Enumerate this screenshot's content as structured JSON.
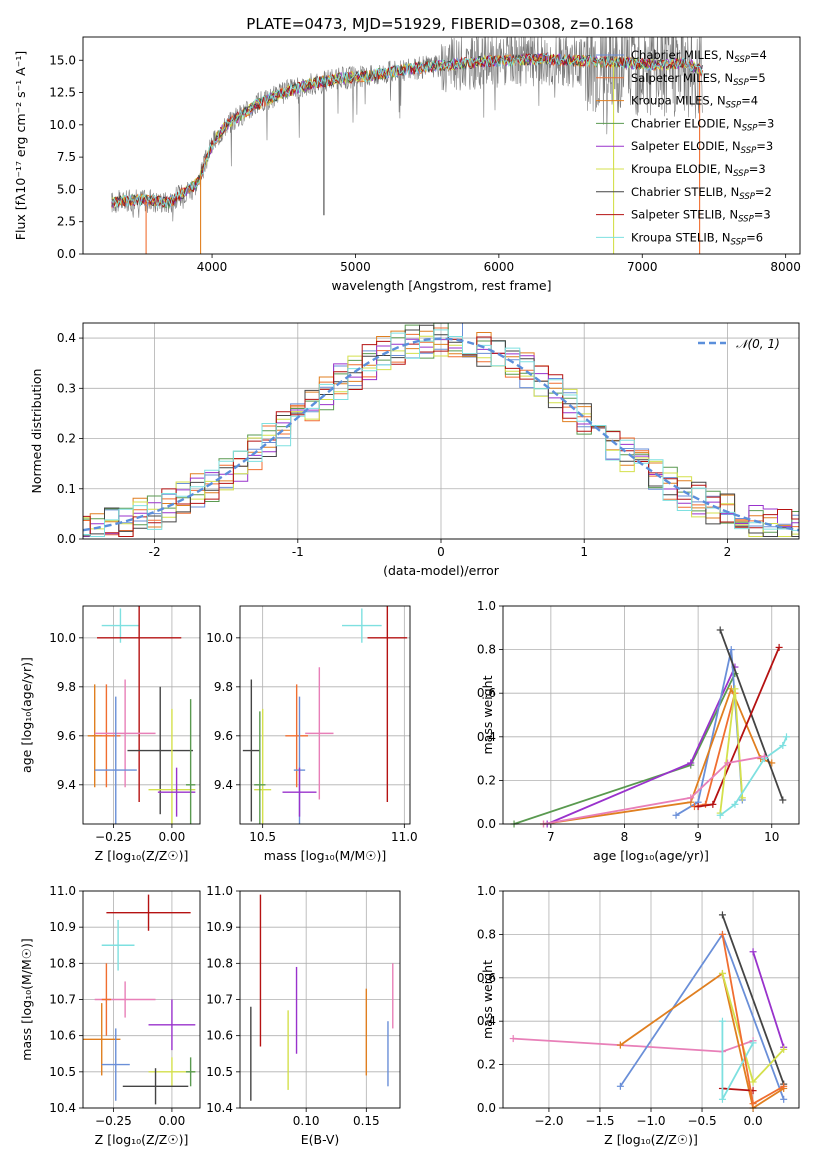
{
  "figure_title": "PLATE=0473, MJD=51929, FIBERID=0308, z=0.168",
  "colors": {
    "chabrier_miles": "#6a8fd8",
    "salpeter_miles": "#f06e30",
    "kroupa_miles": "#e07f20",
    "chabrier_elodie": "#5a9a50",
    "salpeter_elodie": "#9932cc",
    "kroupa_elodie": "#d4e04c",
    "chabrier_stelib": "#444444",
    "salpeter_stelib": "#b51212",
    "kroupa_stelib": "#7ee0e0",
    "pink": "#e87fb8",
    "normal_curve": "#5b8fdb",
    "grid": "#b0b0b0"
  },
  "chart_data": [
    {
      "id": "spectrum",
      "type": "line",
      "title": "PLATE=0473, MJD=51929, FIBERID=0308, z=0.168",
      "xlabel": "wavelength [Angstrom, rest frame]",
      "ylabel": "Flux [fλ10⁻¹⁷ erg cm⁻² s⁻¹ A⁻¹]",
      "xlim": [
        3100,
        8100
      ],
      "ylim": [
        0,
        16.8
      ],
      "xticks": [
        4000,
        5000,
        6000,
        7000,
        8000
      ],
      "yticks": [
        0.0,
        2.5,
        5.0,
        7.5,
        10.0,
        12.5,
        15.0
      ],
      "grid": false,
      "legend_position": "right",
      "legend": [
        {
          "label": "Chabrier MILES, N",
          "sub": "SSP",
          "tail": "=4"
        },
        {
          "label": "Salpeter MILES, N",
          "sub": "SSP",
          "tail": "=5"
        },
        {
          "label": "Kroupa MILES, N",
          "sub": "SSP",
          "tail": "=4"
        },
        {
          "label": "Chabrier ELODIE, N",
          "sub": "SSP",
          "tail": "=3"
        },
        {
          "label": "Salpeter ELODIE, N",
          "sub": "SSP",
          "tail": "=3"
        },
        {
          "label": "Kroupa ELODIE, N",
          "sub": "SSP",
          "tail": "=3"
        },
        {
          "label": "Chabrier STELIB, N",
          "sub": "SSP",
          "tail": "=2"
        },
        {
          "label": "Salpeter STELIB, N",
          "sub": "SSP",
          "tail": "=3"
        },
        {
          "label": "Kroupa STELIB, N",
          "sub": "SSP",
          "tail": "=6"
        }
      ],
      "continuum": {
        "x": [
          3300,
          3500,
          3700,
          3900,
          4000,
          4100,
          4300,
          4500,
          4700,
          4900,
          5100,
          5300,
          5500,
          5700,
          5900,
          6100,
          6300,
          6500,
          6700,
          6900,
          7100,
          7300,
          7420
        ],
        "y": [
          4.0,
          4.2,
          4.0,
          5.5,
          8.5,
          10.0,
          11.5,
          12.5,
          13.2,
          13.6,
          13.8,
          14.2,
          14.5,
          14.7,
          14.9,
          15.0,
          15.1,
          15.0,
          14.9,
          14.8,
          14.6,
          14.8,
          14.2
        ]
      },
      "spikes": [
        {
          "x": 3540,
          "y": 0.0,
          "series": "salpeter_miles"
        },
        {
          "x": 3920,
          "y": 0.0,
          "series": "kroupa_miles"
        },
        {
          "x": 4780,
          "y": 3.0,
          "series": "chabrier_stelib"
        },
        {
          "x": 6800,
          "y": 0.0,
          "series": "kroupa_elodie"
        },
        {
          "x": 7400,
          "y": 0.0,
          "series": "salpeter_miles"
        }
      ]
    },
    {
      "id": "residuals",
      "type": "histogram",
      "xlabel": "(data-model)/error",
      "ylabel": "Normed distribution",
      "xlim": [
        -2.5,
        2.5
      ],
      "ylim": [
        0,
        0.43
      ],
      "xticks": [
        -2,
        -1,
        0,
        1,
        2
      ],
      "yticks": [
        0.0,
        0.1,
        0.2,
        0.3,
        0.4
      ],
      "grid": true,
      "legend_position": "top-right",
      "legend_label": "𝒩(0, 1)",
      "normal": {
        "mu": 0,
        "sigma": 1
      },
      "bin_width": 0.1,
      "series_count": 9
    },
    {
      "id": "age_vs_Z",
      "type": "scatter",
      "xlabel": "Z [log₁₀(Z/Z☉)]",
      "ylabel": "age  [log₁₀(age/yr)]",
      "xlim": [
        -0.38,
        0.12
      ],
      "ylim": [
        9.24,
        10.13
      ],
      "xticks": [
        -0.25,
        0.0
      ],
      "xtick_labels": [
        "−0.25",
        "0.00"
      ],
      "yticks": [
        9.4,
        9.6,
        9.8,
        10.0
      ],
      "grid": true,
      "points": [
        {
          "series": "kroupa_stelib",
          "x": -0.22,
          "y": 10.05,
          "xerr": 0.08,
          "yerr": 0.07
        },
        {
          "series": "salpeter_stelib",
          "x": -0.14,
          "y": 10.0,
          "xerr": 0.18,
          "yerr": 0.67
        },
        {
          "series": "salpeter_miles",
          "x": -0.28,
          "y": 9.6,
          "xerr": 0.06,
          "yerr": 0.21
        },
        {
          "series": "kroupa_miles",
          "x": -0.33,
          "y": 9.6,
          "xerr": 0.03,
          "yerr": 0.21
        },
        {
          "series": "pink",
          "x": -0.2,
          "y": 9.61,
          "xerr": 0.13,
          "yerr": 0.22
        },
        {
          "series": "chabrier_miles",
          "x": -0.24,
          "y": 9.46,
          "xerr": 0.09,
          "yerr": 0.3
        },
        {
          "series": "chabrier_stelib",
          "x": -0.05,
          "y": 9.54,
          "xerr": 0.14,
          "yerr": 0.26
        },
        {
          "series": "kroupa_elodie",
          "x": 0.0,
          "y": 9.38,
          "xerr": 0.1,
          "yerr": 0.33
        },
        {
          "series": "salpeter_elodie",
          "x": 0.02,
          "y": 9.37,
          "xerr": 0.08,
          "yerr": 0.1
        },
        {
          "series": "chabrier_elodie",
          "x": 0.08,
          "y": 9.4,
          "xerr": 0.02,
          "yerr": 0.35
        }
      ]
    },
    {
      "id": "age_vs_mass",
      "type": "scatter",
      "xlabel": "mass [log₁₀(M/M☉)]",
      "ylabel": "",
      "xlim": [
        10.42,
        11.02
      ],
      "ylim": [
        9.24,
        10.13
      ],
      "xticks": [
        10.5,
        11.0
      ],
      "xtick_labels": [
        "10.5",
        "11.0"
      ],
      "yticks": [
        9.4,
        9.6,
        9.8,
        10.0
      ],
      "grid": true,
      "points": [
        {
          "series": "kroupa_stelib",
          "x": 10.85,
          "y": 10.05,
          "xerr": 0.07,
          "yerr": 0.07
        },
        {
          "series": "salpeter_stelib",
          "x": 10.94,
          "y": 10.0,
          "xerr": 0.07,
          "yerr": 0.67
        },
        {
          "series": "salpeter_miles",
          "x": 10.62,
          "y": 9.6,
          "xerr": 0.04,
          "yerr": 0.21
        },
        {
          "series": "pink",
          "x": 10.7,
          "y": 9.61,
          "xerr": 0.05,
          "yerr": 0.27
        },
        {
          "series": "chabrier_miles",
          "x": 10.63,
          "y": 9.46,
          "xerr": 0.02,
          "yerr": 0.3
        },
        {
          "series": "chabrier_stelib",
          "x": 10.46,
          "y": 9.54,
          "xerr": 0.03,
          "yerr": 0.29
        },
        {
          "series": "kroupa_elodie",
          "x": 10.5,
          "y": 9.38,
          "xerr": 0.03,
          "yerr": 0.33
        },
        {
          "series": "salpeter_elodie",
          "x": 10.63,
          "y": 9.37,
          "xerr": 0.06,
          "yerr": 0.1
        },
        {
          "series": "chabrier_elodie",
          "x": 10.49,
          "y": 9.4,
          "xerr": 0.02,
          "yerr": 0.3
        }
      ]
    },
    {
      "id": "mass_weight_vs_age",
      "type": "line",
      "xlabel": "age  [log₁₀(age/yr)]",
      "ylabel": "mass weight",
      "xlim": [
        6.35,
        10.37
      ],
      "ylim": [
        0,
        1.0
      ],
      "xticks": [
        7,
        8,
        9,
        10
      ],
      "yticks": [
        0.0,
        0.2,
        0.4,
        0.6,
        0.8,
        1.0
      ],
      "grid": true,
      "series": [
        {
          "series": "chabrier_elodie",
          "x": [
            6.5,
            8.9,
            9.5
          ],
          "y": [
            0.0,
            0.27,
            0.69
          ]
        },
        {
          "series": "salpeter_elodie",
          "x": [
            6.95,
            8.9,
            9.5
          ],
          "y": [
            0.0,
            0.28,
            0.72
          ]
        },
        {
          "series": "chabrier_miles",
          "x": [
            8.7,
            9.0,
            9.45,
            9.6
          ],
          "y": [
            0.04,
            0.1,
            0.8,
            0.11
          ]
        },
        {
          "series": "kroupa_miles",
          "x": [
            6.9,
            8.9,
            9.45,
            9.85,
            10.0
          ],
          "y": [
            0.0,
            0.1,
            0.62,
            0.3,
            0.28
          ]
        },
        {
          "series": "salpeter_miles",
          "x": [
            8.95,
            9.1,
            9.5
          ],
          "y": [
            0.08,
            0.09,
            0.6
          ]
        },
        {
          "series": "chabrier_stelib",
          "x": [
            9.3,
            10.15
          ],
          "y": [
            0.89,
            0.11
          ]
        },
        {
          "series": "salpeter_stelib",
          "x": [
            9.0,
            9.2,
            10.1
          ],
          "y": [
            0.08,
            0.09,
            0.81
          ]
        },
        {
          "series": "kroupa_elodie",
          "x": [
            9.3,
            9.5,
            9.6
          ],
          "y": [
            0.05,
            0.62,
            0.12
          ]
        },
        {
          "series": "kroupa_stelib",
          "x": [
            9.3,
            9.5,
            9.9,
            10.15,
            10.2
          ],
          "y": [
            0.04,
            0.09,
            0.3,
            0.36,
            0.4
          ]
        },
        {
          "series": "pink",
          "x": [
            6.9,
            8.9,
            9.4,
            9.9
          ],
          "y": [
            0.0,
            0.12,
            0.28,
            0.31
          ]
        }
      ]
    },
    {
      "id": "mass_vs_Z",
      "type": "scatter",
      "xlabel": "Z [log₁₀(Z/Z☉)]",
      "ylabel": "mass [log₁₀(M/M☉)]",
      "xlim": [
        -0.38,
        0.12
      ],
      "ylim": [
        10.4,
        11.0
      ],
      "xticks": [
        -0.25,
        0.0
      ],
      "xtick_labels": [
        "−0.25",
        "0.00"
      ],
      "yticks": [
        10.4,
        10.5,
        10.6,
        10.7,
        10.8,
        10.9,
        11.0
      ],
      "grid": true,
      "points": [
        {
          "series": "salpeter_stelib",
          "x": -0.1,
          "y": 10.94,
          "xerr": 0.18,
          "yerr": 0.05
        },
        {
          "series": "kroupa_stelib",
          "x": -0.23,
          "y": 10.85,
          "xerr": 0.07,
          "yerr": 0.07
        },
        {
          "series": "pink",
          "x": -0.2,
          "y": 10.7,
          "xerr": 0.13,
          "yerr": 0.05
        },
        {
          "series": "salpeter_miles",
          "x": -0.28,
          "y": 10.7,
          "xerr": 0.02,
          "yerr": 0.1
        },
        {
          "series": "salpeter_elodie",
          "x": 0.0,
          "y": 10.63,
          "xerr": 0.1,
          "yerr": 0.07
        },
        {
          "series": "kroupa_miles",
          "x": -0.3,
          "y": 10.59,
          "xerr": 0.08,
          "yerr": 0.1
        },
        {
          "series": "chabrier_miles",
          "x": -0.24,
          "y": 10.52,
          "xerr": 0.06,
          "yerr": 0.1
        },
        {
          "series": "kroupa_elodie",
          "x": 0.0,
          "y": 10.5,
          "xerr": 0.1,
          "yerr": 0.04
        },
        {
          "series": "chabrier_elodie",
          "x": 0.08,
          "y": 10.5,
          "xerr": 0.02,
          "yerr": 0.04
        },
        {
          "series": "chabrier_stelib",
          "x": -0.07,
          "y": 10.46,
          "xerr": 0.14,
          "yerr": 0.05
        }
      ]
    },
    {
      "id": "mass_vs_ebv",
      "type": "scatter",
      "xlabel": "E(B-V)",
      "ylabel": "",
      "xlim": [
        0.045,
        0.178
      ],
      "ylim": [
        10.4,
        11.0
      ],
      "xticks": [
        0.1,
        0.15
      ],
      "xtick_labels": [
        "0.10",
        "0.15"
      ],
      "yticks": [
        10.4,
        10.5,
        10.6,
        10.7,
        10.8,
        10.9,
        11.0
      ],
      "grid": true,
      "points": [
        {
          "series": "salpeter_stelib",
          "x": 0.062,
          "y": 10.78,
          "xerr": 0.0,
          "yerr": 0.21
        },
        {
          "series": "chabrier_stelib",
          "x": 0.054,
          "y": 10.55,
          "xerr": 0.0,
          "yerr": 0.13
        },
        {
          "series": "kroupa_elodie",
          "x": 0.085,
          "y": 10.56,
          "xerr": 0.0,
          "yerr": 0.11
        },
        {
          "series": "salpeter_elodie",
          "x": 0.092,
          "y": 10.67,
          "xerr": 0.0,
          "yerr": 0.12
        },
        {
          "series": "kroupa_miles",
          "x": 0.15,
          "y": 10.61,
          "xerr": 0.0,
          "yerr": 0.12
        },
        {
          "series": "chabrier_miles",
          "x": 0.168,
          "y": 10.55,
          "xerr": 0.0,
          "yerr": 0.09
        },
        {
          "series": "pink",
          "x": 0.172,
          "y": 10.71,
          "xerr": 0.0,
          "yerr": 0.09
        }
      ]
    },
    {
      "id": "mass_weight_vs_Z",
      "type": "line",
      "xlabel": "Z [log₁₀(Z/Z☉)]",
      "ylabel": "mass weight",
      "xlim": [
        -2.45,
        0.45
      ],
      "ylim": [
        0,
        1.0
      ],
      "xticks": [
        -2.0,
        -1.5,
        -1.0,
        -0.5,
        0.0
      ],
      "xtick_labels": [
        "−2.0",
        "−1.5",
        "−1.0",
        "−0.5",
        "0.0"
      ],
      "yticks": [
        0.0,
        0.2,
        0.4,
        0.6,
        0.8,
        1.0
      ],
      "grid": true,
      "series": [
        {
          "series": "pink",
          "x": [
            -2.35,
            -1.3,
            -0.3,
            0.0
          ],
          "y": [
            0.32,
            0.29,
            0.26,
            0.31
          ]
        },
        {
          "series": "chabrier_miles",
          "x": [
            -1.3,
            -0.3,
            0.3
          ],
          "y": [
            0.1,
            0.8,
            0.04
          ]
        },
        {
          "series": "kroupa_miles",
          "x": [
            -1.3,
            -0.3,
            0.0,
            0.3
          ],
          "y": [
            0.29,
            0.62,
            0.0,
            0.09
          ]
        },
        {
          "series": "chabrier_stelib",
          "x": [
            -0.3,
            0.3
          ],
          "y": [
            0.89,
            0.11
          ]
        },
        {
          "series": "salpeter_elodie",
          "x": [
            0.0,
            0.3
          ],
          "y": [
            0.72,
            0.28
          ]
        },
        {
          "series": "kroupa_elodie",
          "x": [
            -0.3,
            0.0,
            0.3
          ],
          "y": [
            0.62,
            0.12,
            0.27
          ]
        },
        {
          "series": "salpeter_stelib",
          "x": [
            -0.3,
            0.0
          ],
          "y": [
            0.09,
            0.08
          ]
        },
        {
          "series": "kroupa_stelib",
          "x": [
            -0.3,
            -0.3,
            0.0
          ],
          "y": [
            0.4,
            0.04,
            0.3
          ]
        },
        {
          "series": "salpeter_miles",
          "x": [
            -0.3,
            0.0,
            0.3
          ],
          "y": [
            0.8,
            0.02,
            0.1
          ]
        }
      ]
    }
  ]
}
